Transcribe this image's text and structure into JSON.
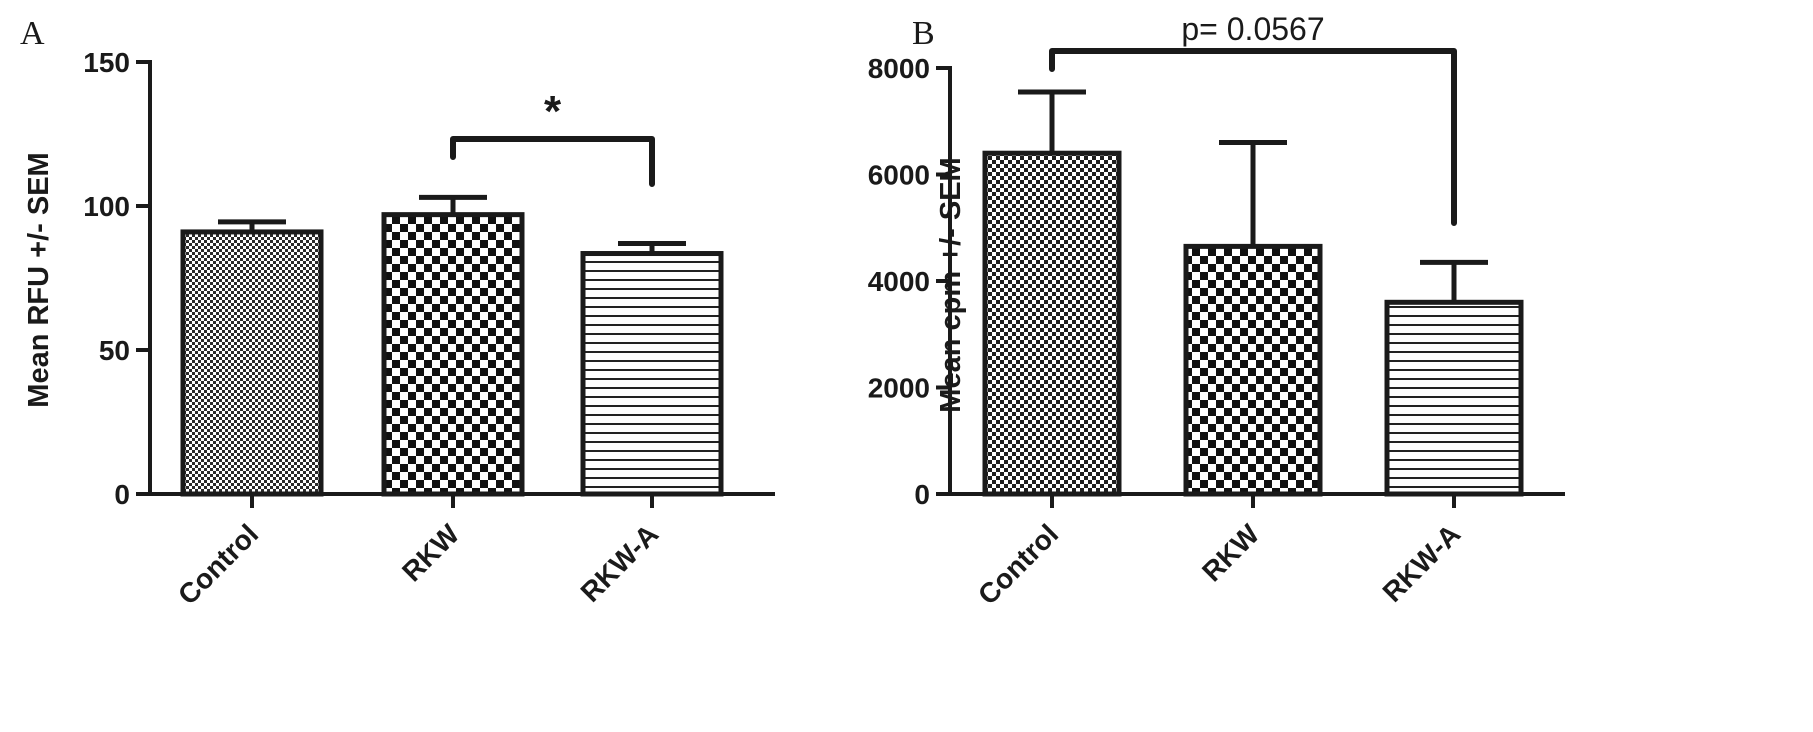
{
  "chart_data": [
    {
      "type": "bar",
      "panel_label": "A",
      "ylabel": "Mean RFU +/- SEM",
      "xlabel": "",
      "title": "",
      "categories": [
        "Control",
        "RKW",
        "RKW-A"
      ],
      "values": [
        91,
        97,
        83.5
      ],
      "errors": [
        3.5,
        6,
        3.5
      ],
      "ylim": [
        0,
        150
      ],
      "yticks": [
        0,
        50,
        100,
        150
      ],
      "patterns": [
        "fine-dots",
        "checker",
        "horizontal-lines"
      ],
      "significance": {
        "from": 1,
        "to": 2,
        "label": "*"
      }
    },
    {
      "type": "bar",
      "panel_label": "B",
      "ylabel": "Mean cpm +/- SEM",
      "xlabel": "",
      "title": "",
      "categories": [
        "Control",
        "RKW",
        "RKW-A"
      ],
      "values": [
        6400,
        4650,
        3600
      ],
      "errors": [
        1150,
        1950,
        750
      ],
      "ylim": [
        0,
        8000
      ],
      "yticks": [
        0,
        2000,
        4000,
        6000,
        8000
      ],
      "patterns": [
        "fine-checker",
        "checker",
        "horizontal-lines"
      ],
      "significance": {
        "from": 0,
        "to": 2,
        "label": "p= 0.0567"
      }
    }
  ]
}
